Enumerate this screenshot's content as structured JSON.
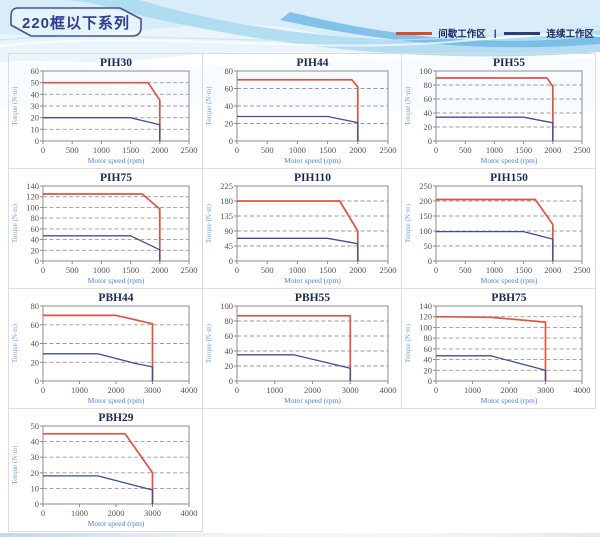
{
  "page": {
    "title": "220框以下系列"
  },
  "legend": {
    "intermittent_label": "间歇工作区",
    "separator": "|",
    "continuous_label": "连续工作区",
    "intermittent_color": "#df5440",
    "continuous_color": "#3f508f"
  },
  "axis": {
    "xlabel": "Motor speed (rpm)",
    "ylabel": "Torque (N·m)"
  },
  "colors": {
    "grid": "#9a9a9a",
    "axis": "#8c8c8c",
    "tick": "#5d5248",
    "title": "#1a2857",
    "axis_label_y": "#7aa6d8",
    "axis_label_x": "#4f86c6",
    "red": "#df5440",
    "blue": "#3f508f"
  },
  "chart_data": [
    {
      "type": "line",
      "title": "PIH30",
      "xlabel": "Motor speed (rpm)",
      "ylabel": "Torque (N·m)",
      "xlim": [
        0,
        2500
      ],
      "ylim": [
        0,
        60
      ],
      "xticks": [
        0,
        500,
        1000,
        1500,
        2000,
        2500
      ],
      "yticks": [
        0,
        10,
        20,
        30,
        40,
        50,
        60
      ],
      "series": [
        {
          "name": "间歇工作区",
          "color": "#df5440",
          "points": [
            [
              0,
              50
            ],
            [
              1800,
              50
            ],
            [
              2000,
              35
            ],
            [
              2000,
              0
            ]
          ]
        },
        {
          "name": "连续工作区",
          "color": "#3f508f",
          "points": [
            [
              0,
              20
            ],
            [
              1500,
              20
            ],
            [
              2000,
              14
            ],
            [
              2000,
              0
            ]
          ]
        }
      ]
    },
    {
      "type": "line",
      "title": "PIH44",
      "xlabel": "Motor speed (rpm)",
      "ylabel": "Torque (N·m)",
      "xlim": [
        0,
        2500
      ],
      "ylim": [
        0,
        80
      ],
      "xticks": [
        0,
        500,
        1000,
        1500,
        2000,
        2500
      ],
      "yticks": [
        0,
        20,
        40,
        60,
        80
      ],
      "series": [
        {
          "name": "间歇工作区",
          "color": "#df5440",
          "points": [
            [
              0,
              70
            ],
            [
              1900,
              70
            ],
            [
              2000,
              62
            ],
            [
              2000,
              0
            ]
          ]
        },
        {
          "name": "连续工作区",
          "color": "#3f508f",
          "points": [
            [
              0,
              28
            ],
            [
              1500,
              28
            ],
            [
              2000,
              21
            ],
            [
              2000,
              0
            ]
          ]
        }
      ]
    },
    {
      "type": "line",
      "title": "PIH55",
      "xlabel": "Motor speed (rpm)",
      "ylabel": "Torque (N·m)",
      "xlim": [
        0,
        2500
      ],
      "ylim": [
        0,
        100
      ],
      "xticks": [
        0,
        500,
        1000,
        1500,
        2000,
        2500
      ],
      "yticks": [
        0,
        20,
        40,
        60,
        80,
        100
      ],
      "series": [
        {
          "name": "间歇工作区",
          "color": "#df5440",
          "points": [
            [
              0,
              90
            ],
            [
              1900,
              90
            ],
            [
              2000,
              78
            ],
            [
              2000,
              0
            ]
          ]
        },
        {
          "name": "连续工作区",
          "color": "#3f508f",
          "points": [
            [
              0,
              34
            ],
            [
              1500,
              34
            ],
            [
              2000,
              26
            ],
            [
              2000,
              0
            ]
          ]
        }
      ]
    },
    {
      "type": "line",
      "title": "PIH75",
      "xlabel": "Motor speed (rpm)",
      "ylabel": "Torque (N·m)",
      "xlim": [
        0,
        2500
      ],
      "ylim": [
        0,
        140
      ],
      "xticks": [
        0,
        500,
        1000,
        1500,
        2000,
        2500
      ],
      "yticks": [
        0,
        20,
        40,
        60,
        80,
        100,
        120,
        140
      ],
      "series": [
        {
          "name": "间歇工作区",
          "color": "#df5440",
          "points": [
            [
              0,
              125
            ],
            [
              1700,
              125
            ],
            [
              2000,
              97
            ],
            [
              2000,
              0
            ]
          ]
        },
        {
          "name": "连续工作区",
          "color": "#3f508f",
          "points": [
            [
              0,
              47
            ],
            [
              1500,
              47
            ],
            [
              2000,
              21
            ],
            [
              2000,
              0
            ]
          ]
        }
      ]
    },
    {
      "type": "line",
      "title": "PIH110",
      "xlabel": "Motor speed (rpm)",
      "ylabel": "Torque (N·m)",
      "xlim": [
        0,
        2500
      ],
      "ylim": [
        0,
        225
      ],
      "xticks": [
        0,
        500,
        1000,
        1500,
        2000,
        2500
      ],
      "yticks": [
        0,
        45,
        90,
        135,
        180,
        225
      ],
      "series": [
        {
          "name": "间歇工作区",
          "color": "#df5440",
          "points": [
            [
              0,
              180
            ],
            [
              1700,
              180
            ],
            [
              2000,
              90
            ],
            [
              2000,
              0
            ]
          ]
        },
        {
          "name": "连续工作区",
          "color": "#3f508f",
          "points": [
            [
              0,
              68
            ],
            [
              1500,
              68
            ],
            [
              2000,
              52
            ],
            [
              2000,
              0
            ]
          ]
        }
      ]
    },
    {
      "type": "line",
      "title": "PIH150",
      "xlabel": "Motor speed (rpm)",
      "ylabel": "Torque (N·m)",
      "xlim": [
        0,
        2500
      ],
      "ylim": [
        0,
        250
      ],
      "xticks": [
        0,
        500,
        1000,
        1500,
        2000,
        2500
      ],
      "yticks": [
        0,
        50,
        100,
        150,
        200,
        250
      ],
      "series": [
        {
          "name": "间歇工作区",
          "color": "#df5440",
          "points": [
            [
              0,
              205
            ],
            [
              1700,
              205
            ],
            [
              2000,
              122
            ],
            [
              2000,
              0
            ]
          ]
        },
        {
          "name": "连续工作区",
          "color": "#3f508f",
          "points": [
            [
              0,
              98
            ],
            [
              1500,
              98
            ],
            [
              2000,
              73
            ],
            [
              2000,
              0
            ]
          ]
        }
      ]
    },
    {
      "type": "line",
      "title": "PBH44",
      "xlabel": "Motor speed (rpm)",
      "ylabel": "Torque (N·m)",
      "xlim": [
        0,
        4000
      ],
      "ylim": [
        0,
        80
      ],
      "xticks": [
        0,
        1000,
        2000,
        3000,
        4000
      ],
      "yticks": [
        0,
        20,
        40,
        60,
        80
      ],
      "series": [
        {
          "name": "间歇工作区",
          "color": "#df5440",
          "points": [
            [
              0,
              70
            ],
            [
              2000,
              70
            ],
            [
              3000,
              61
            ],
            [
              3000,
              0
            ]
          ]
        },
        {
          "name": "连续工作区",
          "color": "#3f508f",
          "points": [
            [
              0,
              29
            ],
            [
              1500,
              29
            ],
            [
              2500,
              19
            ],
            [
              3000,
              15
            ],
            [
              3000,
              0
            ]
          ]
        }
      ]
    },
    {
      "type": "line",
      "title": "PBH55",
      "xlabel": "Motor speed (rpm)",
      "ylabel": "Torque (N·m)",
      "xlim": [
        0,
        4000
      ],
      "ylim": [
        0,
        100
      ],
      "xticks": [
        0,
        1000,
        2000,
        3000,
        4000
      ],
      "yticks": [
        0,
        20,
        40,
        60,
        80,
        100
      ],
      "series": [
        {
          "name": "间歇工作区",
          "color": "#df5440",
          "points": [
            [
              0,
              87
            ],
            [
              3000,
              87
            ],
            [
              3000,
              0
            ]
          ]
        },
        {
          "name": "连续工作区",
          "color": "#3f508f",
          "points": [
            [
              0,
              35
            ],
            [
              1500,
              35
            ],
            [
              3000,
              17
            ],
            [
              3000,
              0
            ]
          ]
        }
      ]
    },
    {
      "type": "line",
      "title": "PBH75",
      "xlabel": "Motor speed (rpm)",
      "ylabel": "Torque (N·m)",
      "xlim": [
        0,
        4000
      ],
      "ylim": [
        0,
        140
      ],
      "xticks": [
        0,
        1000,
        2000,
        3000,
        4000
      ],
      "yticks": [
        0,
        20,
        40,
        60,
        80,
        100,
        120,
        140
      ],
      "series": [
        {
          "name": "间歇工作区",
          "color": "#df5440",
          "points": [
            [
              0,
              120
            ],
            [
              1500,
              119
            ],
            [
              3000,
              110
            ],
            [
              3000,
              0
            ]
          ]
        },
        {
          "name": "连续工作区",
          "color": "#3f508f",
          "points": [
            [
              0,
              47
            ],
            [
              1500,
              47
            ],
            [
              3000,
              20
            ],
            [
              3000,
              0
            ]
          ]
        }
      ]
    },
    {
      "type": "line",
      "title": "PBH29",
      "xlabel": "Motor speed (rpm)",
      "ylabel": "Torque (N·m)",
      "xlim": [
        0,
        4000
      ],
      "ylim": [
        0,
        50
      ],
      "xticks": [
        0,
        1000,
        2000,
        3000,
        4000
      ],
      "yticks": [
        0,
        10,
        20,
        30,
        40,
        50
      ],
      "series": [
        {
          "name": "间歇工作区",
          "color": "#df5440",
          "points": [
            [
              0,
              45
            ],
            [
              2250,
              45
            ],
            [
              3000,
              20
            ],
            [
              3000,
              0
            ]
          ]
        },
        {
          "name": "连续工作区",
          "color": "#3f508f",
          "points": [
            [
              0,
              18
            ],
            [
              1500,
              18
            ],
            [
              3000,
              9
            ],
            [
              3000,
              0
            ]
          ]
        }
      ]
    }
  ]
}
